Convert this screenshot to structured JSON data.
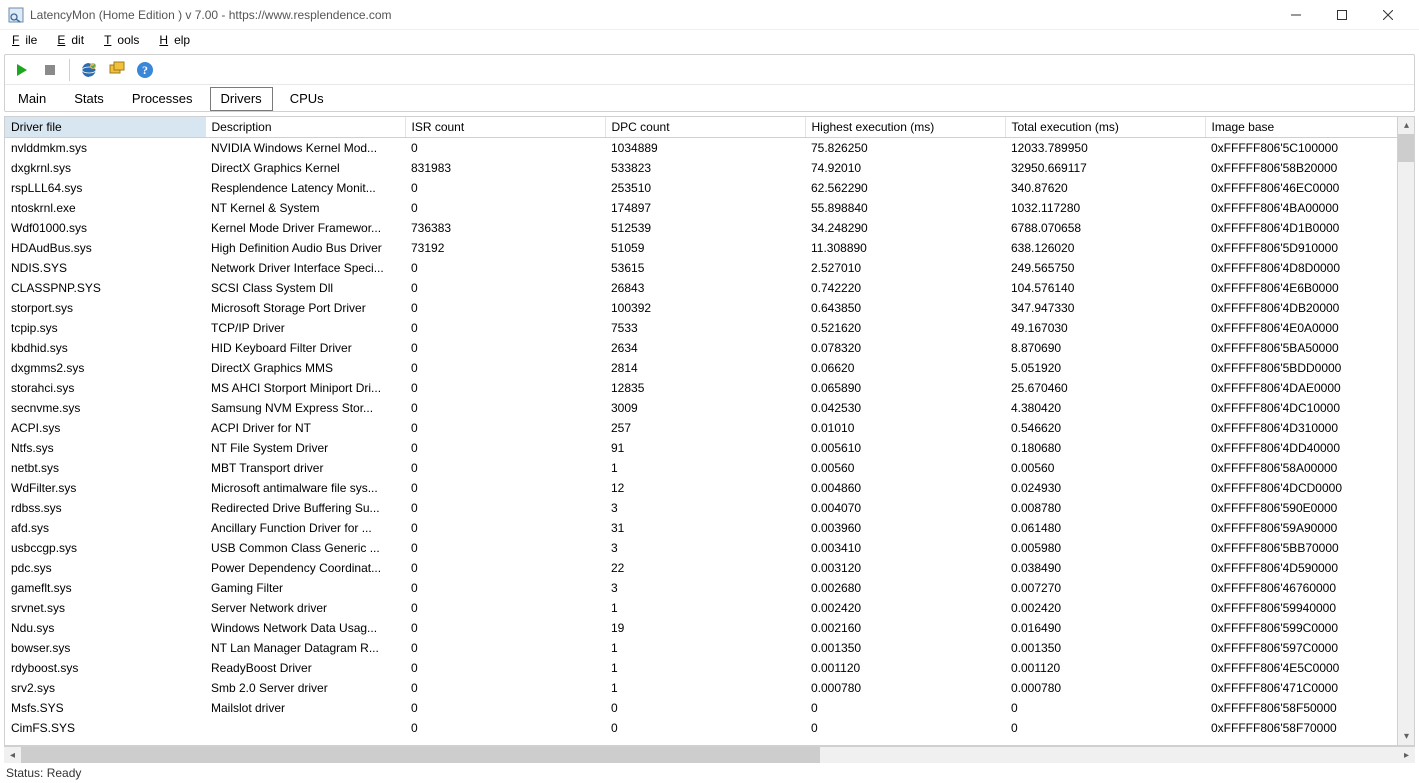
{
  "window": {
    "title": "LatencyMon  (Home Edition )  v 7.00 - https://www.resplendence.com"
  },
  "menu": {
    "file": "File",
    "edit": "Edit",
    "tools": "Tools",
    "help": "Help"
  },
  "tabs": {
    "main": "Main",
    "stats": "Stats",
    "processes": "Processes",
    "drivers": "Drivers",
    "cpus": "CPUs"
  },
  "colors": {
    "play_green": "#1ea61e",
    "stop_gray": "#8a8a8a",
    "globe_blue": "#2b6cb0",
    "globe_yellow": "#e8b64a",
    "windows_yellow": "#f0c23c",
    "help_blue": "#3a86d8",
    "header_active_bg": "#d8e6f2"
  },
  "columns": [
    "Driver file",
    "Description",
    "ISR count",
    "DPC count",
    "Highest execution (ms)",
    "Total execution (ms)",
    "Image base"
  ],
  "rows": [
    [
      "nvlddmkm.sys",
      "NVIDIA Windows Kernel Mod...",
      "0",
      "1034889",
      "75.826250",
      "12033.789950",
      "0xFFFFF806'5C100000"
    ],
    [
      "dxgkrnl.sys",
      "DirectX Graphics Kernel",
      "831983",
      "533823",
      "74.92010",
      "32950.669117",
      "0xFFFFF806'58B20000"
    ],
    [
      "rspLLL64.sys",
      "Resplendence Latency Monit...",
      "0",
      "253510",
      "62.562290",
      "340.87620",
      "0xFFFFF806'46EC0000"
    ],
    [
      "ntoskrnl.exe",
      "NT Kernel & System",
      "0",
      "174897",
      "55.898840",
      "1032.117280",
      "0xFFFFF806'4BA00000"
    ],
    [
      "Wdf01000.sys",
      "Kernel Mode Driver Framewor...",
      "736383",
      "512539",
      "34.248290",
      "6788.070658",
      "0xFFFFF806'4D1B0000"
    ],
    [
      "HDAudBus.sys",
      "High Definition Audio Bus Driver",
      "73192",
      "51059",
      "11.308890",
      "638.126020",
      "0xFFFFF806'5D910000"
    ],
    [
      "NDIS.SYS",
      "Network Driver Interface Speci...",
      "0",
      "53615",
      "2.527010",
      "249.565750",
      "0xFFFFF806'4D8D0000"
    ],
    [
      "CLASSPNP.SYS",
      "SCSI Class System Dll",
      "0",
      "26843",
      "0.742220",
      "104.576140",
      "0xFFFFF806'4E6B0000"
    ],
    [
      "storport.sys",
      "Microsoft Storage Port Driver",
      "0",
      "100392",
      "0.643850",
      "347.947330",
      "0xFFFFF806'4DB20000"
    ],
    [
      "tcpip.sys",
      "TCP/IP Driver",
      "0",
      "7533",
      "0.521620",
      "49.167030",
      "0xFFFFF806'4E0A0000"
    ],
    [
      "kbdhid.sys",
      "HID Keyboard Filter Driver",
      "0",
      "2634",
      "0.078320",
      "8.870690",
      "0xFFFFF806'5BA50000"
    ],
    [
      "dxgmms2.sys",
      "DirectX Graphics MMS",
      "0",
      "2814",
      "0.06620",
      "5.051920",
      "0xFFFFF806'5BDD0000"
    ],
    [
      "storahci.sys",
      "MS AHCI Storport Miniport Dri...",
      "0",
      "12835",
      "0.065890",
      "25.670460",
      "0xFFFFF806'4DAE0000"
    ],
    [
      "secnvme.sys",
      "Samsung NVM Express Stor...",
      "0",
      "3009",
      "0.042530",
      "4.380420",
      "0xFFFFF806'4DC10000"
    ],
    [
      "ACPI.sys",
      "ACPI Driver for NT",
      "0",
      "257",
      "0.01010",
      "0.546620",
      "0xFFFFF806'4D310000"
    ],
    [
      "Ntfs.sys",
      "NT File System Driver",
      "0",
      "91",
      "0.005610",
      "0.180680",
      "0xFFFFF806'4DD40000"
    ],
    [
      "netbt.sys",
      "MBT Transport driver",
      "0",
      "1",
      "0.00560",
      "0.00560",
      "0xFFFFF806'58A00000"
    ],
    [
      "WdFilter.sys",
      "Microsoft antimalware file sys...",
      "0",
      "12",
      "0.004860",
      "0.024930",
      "0xFFFFF806'4DCD0000"
    ],
    [
      "rdbss.sys",
      "Redirected Drive Buffering Su...",
      "0",
      "3",
      "0.004070",
      "0.008780",
      "0xFFFFF806'590E0000"
    ],
    [
      "afd.sys",
      "Ancillary Function Driver for ...",
      "0",
      "31",
      "0.003960",
      "0.061480",
      "0xFFFFF806'59A90000"
    ],
    [
      "usbccgp.sys",
      "USB Common Class Generic ...",
      "0",
      "3",
      "0.003410",
      "0.005980",
      "0xFFFFF806'5BB70000"
    ],
    [
      "pdc.sys",
      "Power Dependency Coordinat...",
      "0",
      "22",
      "0.003120",
      "0.038490",
      "0xFFFFF806'4D590000"
    ],
    [
      "gameflt.sys",
      "Gaming Filter",
      "0",
      "3",
      "0.002680",
      "0.007270",
      "0xFFFFF806'46760000"
    ],
    [
      "srvnet.sys",
      "Server Network driver",
      "0",
      "1",
      "0.002420",
      "0.002420",
      "0xFFFFF806'59940000"
    ],
    [
      "Ndu.sys",
      "Windows Network Data Usag...",
      "0",
      "19",
      "0.002160",
      "0.016490",
      "0xFFFFF806'599C0000"
    ],
    [
      "bowser.sys",
      "NT Lan Manager Datagram R...",
      "0",
      "1",
      "0.001350",
      "0.001350",
      "0xFFFFF806'597C0000"
    ],
    [
      "rdyboost.sys",
      "ReadyBoost Driver",
      "0",
      "1",
      "0.001120",
      "0.001120",
      "0xFFFFF806'4E5C0000"
    ],
    [
      "srv2.sys",
      "Smb 2.0 Server driver",
      "0",
      "1",
      "0.000780",
      "0.000780",
      "0xFFFFF806'471C0000"
    ],
    [
      "Msfs.SYS",
      "Mailslot driver",
      "0",
      "0",
      "0",
      "0",
      "0xFFFFF806'58F50000"
    ],
    [
      "CimFS.SYS",
      "",
      "0",
      "0",
      "0",
      "0",
      "0xFFFFF806'58F70000"
    ]
  ],
  "status": {
    "text": "Status: Ready"
  }
}
